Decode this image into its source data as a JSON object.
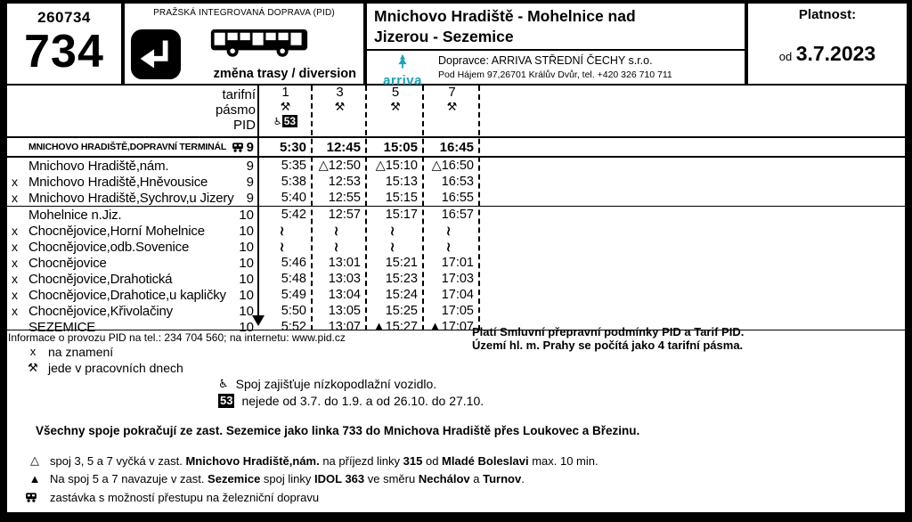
{
  "page": {
    "line_code": "260734",
    "line_number": "734",
    "pid_header": "PRAŽSKÁ INTEGROVANÁ DOPRAVA (PID)",
    "diversion_label": "změna trasy / diversion",
    "title_line1": "Mnichovo Hradiště - Mohelnice nad",
    "title_line2": "Jizerou - Sezemice",
    "carrier_line1": "Dopravce: ARRIVA STŘEDNÍ ČECHY s.r.o.",
    "carrier_line2": "Pod Hájem 97,26701 Králův Dvůr, tel. +420 326 710 711",
    "arriva_logo_text": "arriva",
    "validity_label": "Platnost:",
    "validity_prefix": "od",
    "validity_date": "3.7.2023",
    "accent_teal": "#1aa3b8"
  },
  "timetable": {
    "zone_header": [
      "tarifní",
      "pásmo",
      "PID"
    ],
    "trips": [
      {
        "number": "1",
        "day_symbol": "⚒",
        "low_floor": "♿",
        "note_badge": "53"
      },
      {
        "number": "3",
        "day_symbol": "⚒"
      },
      {
        "number": "5",
        "day_symbol": "⚒"
      },
      {
        "number": "7",
        "day_symbol": "⚒"
      }
    ],
    "rows": [
      {
        "request": "",
        "stop": "MNICHOVO HRADIŠTĚ,DOPRAVNÍ TERMINÁL",
        "train": true,
        "zone": "9",
        "times": [
          "5:30",
          "12:45",
          "15:05",
          "16:45"
        ],
        "bold": true
      },
      {
        "request": "",
        "stop": "Mnichovo Hradiště,nám.",
        "zone": "9",
        "times": [
          "5:35",
          "△12:50",
          "△15:10",
          "△16:50"
        ]
      },
      {
        "request": "x",
        "stop": "Mnichovo Hradiště,Hněvousice",
        "zone": "9",
        "times": [
          "5:38",
          "12:53",
          "15:13",
          "16:53"
        ]
      },
      {
        "request": "x",
        "stop": "Mnichovo Hradiště,Sychrov,u Jizery",
        "zone": "9",
        "times": [
          "5:40",
          "12:55",
          "15:15",
          "16:55"
        ]
      },
      {
        "request": "",
        "stop": "Mohelnice n.Jiz.",
        "zone": "10",
        "times": [
          "5:42",
          "12:57",
          "15:17",
          "16:57"
        ],
        "sep": true
      },
      {
        "request": "x",
        "stop": "Chocnějovice,Horní Mohelnice",
        "zone": "10",
        "times": [
          "⌇",
          "⌇",
          "⌇",
          "⌇"
        ]
      },
      {
        "request": "x",
        "stop": "Chocnějovice,odb.Sovenice",
        "zone": "10",
        "times": [
          "⌇",
          "⌇",
          "⌇",
          "⌇"
        ]
      },
      {
        "request": "x",
        "stop": "Chocnějovice",
        "zone": "10",
        "times": [
          "5:46",
          "13:01",
          "15:21",
          "17:01"
        ]
      },
      {
        "request": "x",
        "stop": "Chocnějovice,Drahotická",
        "zone": "10",
        "times": [
          "5:48",
          "13:03",
          "15:23",
          "17:03"
        ]
      },
      {
        "request": "x",
        "stop": "Chocnějovice,Drahotice,u kapličky",
        "zone": "10",
        "times": [
          "5:49",
          "13:04",
          "15:24",
          "17:04"
        ]
      },
      {
        "request": "x",
        "stop": "Chocnějovice,Křivolačiny",
        "zone": "10",
        "times": [
          "5:50",
          "13:05",
          "15:25",
          "17:05"
        ]
      },
      {
        "request": "",
        "stop": "SEZEMICE",
        "zone": "10",
        "times": [
          "5:52",
          "13:07",
          "▲15:27",
          "▲17:07"
        ]
      }
    ]
  },
  "footer": {
    "info_line": "Informace o provozu PID na tel.: 234 704 560; na internetu: www.pid.cz",
    "conditions_line1": "Platí Smluvní přepravní podmínky PID a Tarif PID.",
    "conditions_line2": "Území hl. m. Prahy se počítá jako 4 tarifní pásma.",
    "legend": [
      {
        "symbol": "x",
        "text": "na znamení"
      },
      {
        "symbol": "⚒",
        "text": "jede v pracovních dnech"
      }
    ],
    "vehicle_notes": [
      {
        "symbol": "♿",
        "badge": false,
        "text": "Spoj zajišťuje nízkopodlažní vozidlo."
      },
      {
        "symbol": "53",
        "badge": true,
        "text": "nejede od 3.7. do 1.9. a od 26.10. do 27.10."
      }
    ],
    "continuation": "Všechny spoje pokračují ze zast. Sezemice jako linka 733 do Mnichova Hradiště přes Loukovec a Březinu.",
    "notes": [
      {
        "symbol": "△",
        "segments": [
          {
            "t": "spoj 3, 5 a 7 vyčká v zast. "
          },
          {
            "t": "Mnichovo Hradiště,nám.",
            "b": true
          },
          {
            "t": " na příjezd linky "
          },
          {
            "t": "315",
            "b": true
          },
          {
            "t": " od "
          },
          {
            "t": "Mladé Boleslavi",
            "b": true
          },
          {
            "t": " max. 10 min."
          }
        ]
      },
      {
        "symbol": "▲",
        "segments": [
          {
            "t": "Na spoj 5 a 7 navazuje v zast. "
          },
          {
            "t": "Sezemice",
            "b": true
          },
          {
            "t": " spoj linky "
          },
          {
            "t": "IDOL 363",
            "b": true
          },
          {
            "t": " ve směru "
          },
          {
            "t": "Nechálov",
            "b": true
          },
          {
            "t": " a "
          },
          {
            "t": "Turnov",
            "b": true
          },
          {
            "t": "."
          }
        ]
      },
      {
        "symbol": "train",
        "segments": [
          {
            "t": "zastávka s možností přestupu na železniční dopravu"
          }
        ]
      }
    ]
  }
}
